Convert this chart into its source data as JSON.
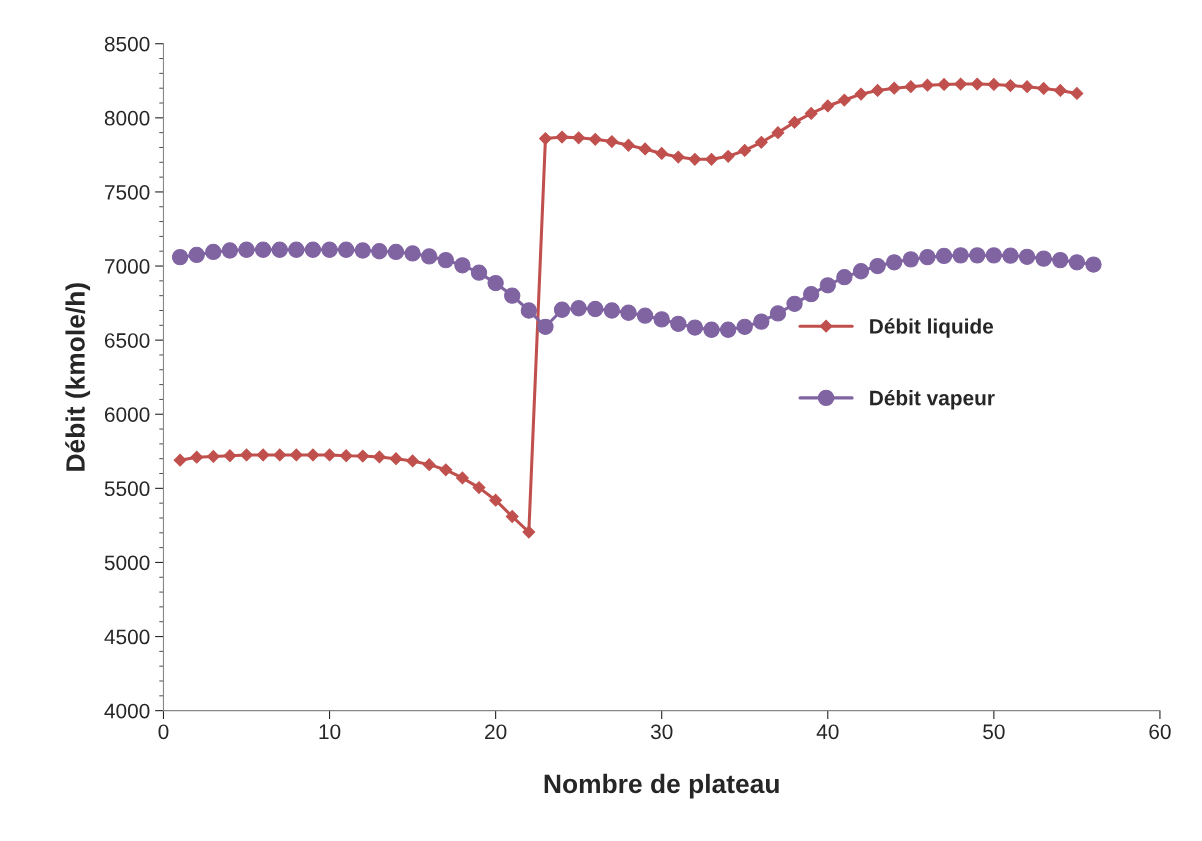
{
  "chart_data": {
    "type": "line",
    "xlabel": "Nombre de plateau",
    "ylabel": "Débit (kmole/h)",
    "xlim": [
      0,
      60
    ],
    "xticks": [
      0,
      10,
      20,
      30,
      40,
      50,
      60
    ],
    "ylim": [
      4000,
      8500
    ],
    "yticks": [
      4000,
      4500,
      5000,
      5500,
      6000,
      6500,
      7000,
      7500,
      8000,
      8500
    ],
    "grid": false,
    "legend": "right",
    "line_style": "solid",
    "series": [
      {
        "name": "Débit liquide",
        "color": "#c0504d",
        "marker": "diamond",
        "x": [
          1,
          2,
          3,
          4,
          5,
          6,
          7,
          8,
          9,
          10,
          11,
          12,
          13,
          14,
          15,
          16,
          17,
          18,
          19,
          20,
          21,
          22,
          23,
          24,
          25,
          26,
          27,
          28,
          29,
          30,
          31,
          32,
          33,
          34,
          35,
          36,
          37,
          38,
          39,
          40,
          41,
          42,
          43,
          44,
          45,
          46,
          47,
          48,
          49,
          50,
          51,
          52,
          53,
          54,
          55
        ],
        "values": [
          5690,
          5710,
          5715,
          5720,
          5725,
          5725,
          5725,
          5725,
          5725,
          5725,
          5720,
          5718,
          5712,
          5700,
          5685,
          5660,
          5625,
          5570,
          5505,
          5420,
          5310,
          5205,
          7860,
          7870,
          7865,
          7855,
          7840,
          7815,
          7790,
          7760,
          7735,
          7720,
          7720,
          7740,
          7780,
          7835,
          7900,
          7970,
          8030,
          8080,
          8120,
          8160,
          8185,
          8200,
          8210,
          8220,
          8225,
          8228,
          8228,
          8225,
          8218,
          8210,
          8198,
          8185,
          8165
        ]
      },
      {
        "name": "Débit vapeur",
        "color": "#8064a2",
        "marker": "circle",
        "x": [
          1,
          2,
          3,
          4,
          5,
          6,
          7,
          8,
          9,
          10,
          11,
          12,
          13,
          14,
          15,
          16,
          17,
          18,
          19,
          20,
          21,
          22,
          23,
          24,
          25,
          26,
          27,
          28,
          29,
          30,
          31,
          32,
          33,
          34,
          35,
          36,
          37,
          38,
          39,
          40,
          41,
          42,
          43,
          44,
          45,
          46,
          47,
          48,
          49,
          50,
          51,
          52,
          53,
          54,
          55,
          56
        ],
        "values": [
          7060,
          7075,
          7095,
          7105,
          7110,
          7110,
          7110,
          7110,
          7110,
          7110,
          7110,
          7105,
          7100,
          7095,
          7085,
          7065,
          7040,
          7005,
          6955,
          6885,
          6800,
          6700,
          6590,
          6705,
          6715,
          6710,
          6700,
          6685,
          6665,
          6640,
          6610,
          6585,
          6570,
          6570,
          6590,
          6625,
          6680,
          6745,
          6810,
          6870,
          6925,
          6965,
          7000,
          7025,
          7045,
          7060,
          7068,
          7072,
          7072,
          7072,
          7070,
          7062,
          7050,
          7040,
          7025,
          7010
        ]
      }
    ]
  }
}
